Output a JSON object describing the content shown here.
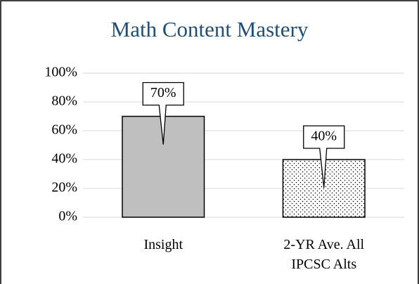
{
  "chart_data": {
    "type": "bar",
    "title": "Math Content Mastery",
    "categories": [
      "Insight",
      "2-YR Ave. All IPCSC Alts"
    ],
    "values": [
      70,
      40
    ],
    "value_labels": [
      "70%",
      "40%"
    ],
    "colors": [
      "#bfbfbf",
      "#ffffff"
    ],
    "patterns": [
      "solid",
      "dots"
    ],
    "ylim": [
      0,
      100
    ],
    "yticks": [
      {
        "value": 0,
        "label": "0%"
      },
      {
        "value": 20,
        "label": "20%"
      },
      {
        "value": 40,
        "label": "40%"
      },
      {
        "value": 60,
        "label": "60%"
      },
      {
        "value": 80,
        "label": "80%"
      },
      {
        "value": 100,
        "label": "100%"
      }
    ],
    "grid": true
  }
}
